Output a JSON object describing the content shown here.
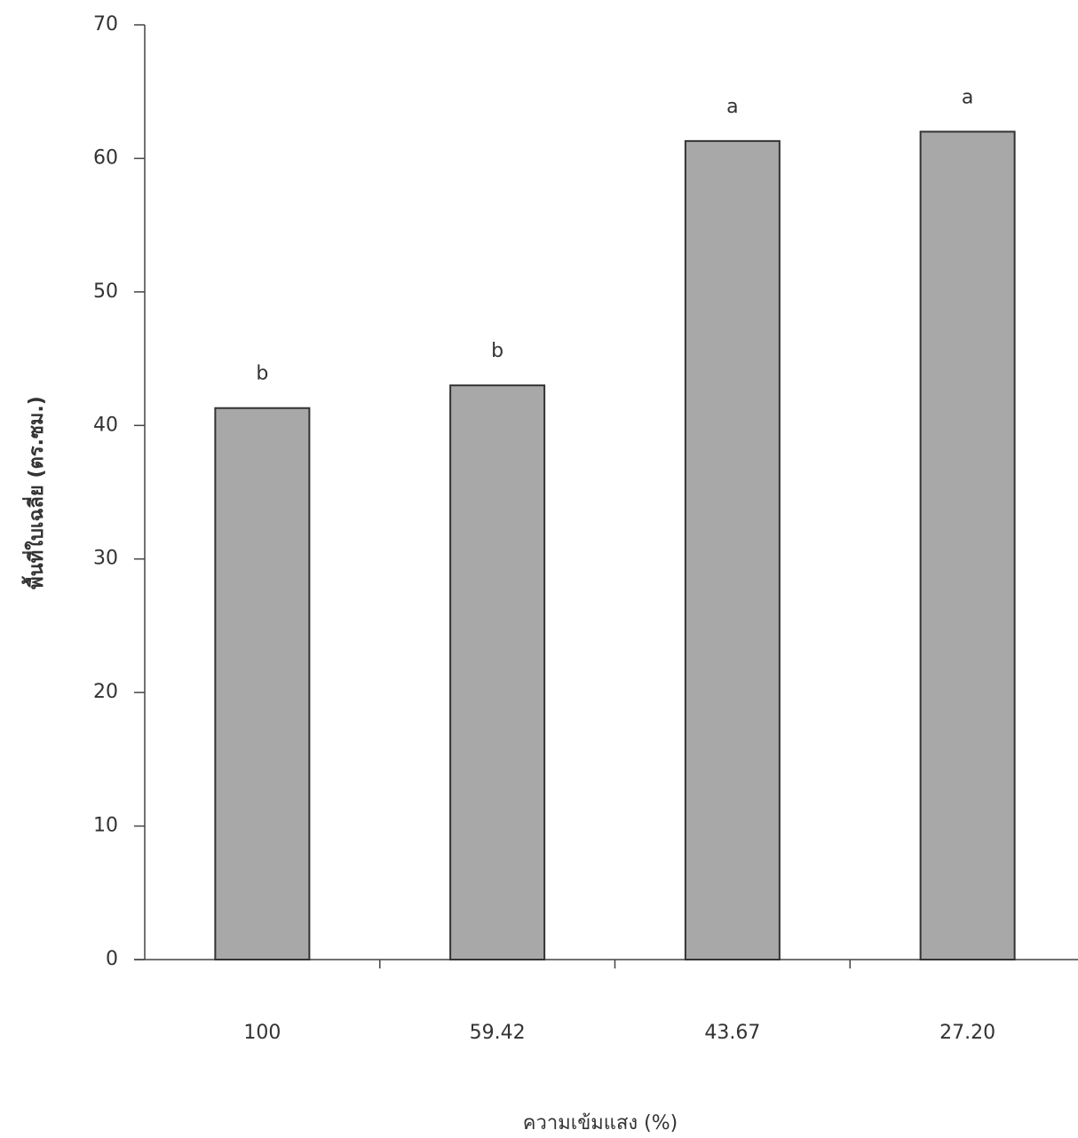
{
  "chart_data": {
    "type": "bar",
    "x_label": "ความเข้มแสง (%)",
    "y_label": "พื้นที่ใบเฉลี่ย (ตร.ซม.)",
    "categories": [
      "100",
      "59.42",
      "43.67",
      "27.20"
    ],
    "values": [
      41.3,
      43.0,
      61.3,
      62.0
    ],
    "significance_labels": [
      "b",
      "b",
      "a",
      "a"
    ],
    "color": "#a8a8a8",
    "ylim": [
      0,
      70
    ],
    "yticks": [
      0,
      10,
      20,
      30,
      40,
      50,
      60,
      70
    ],
    "grid": false
  }
}
